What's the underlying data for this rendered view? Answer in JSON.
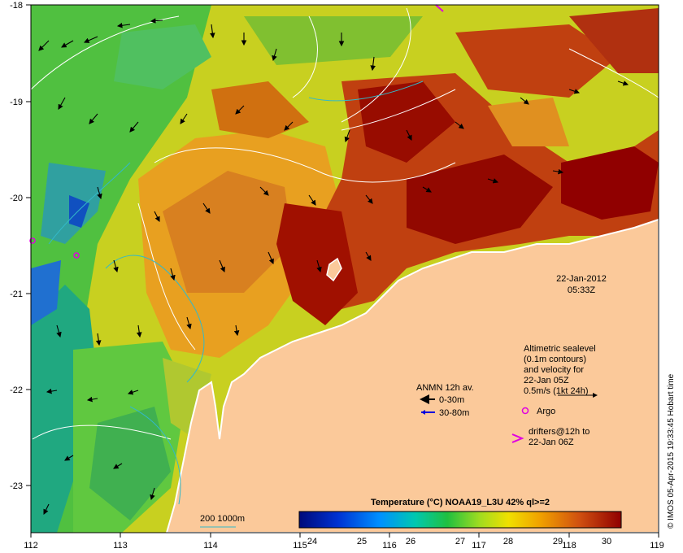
{
  "map": {
    "timestamp_date": "22-Jan-2012",
    "timestamp_time": "05:33Z",
    "lon_ticks": [
      "112",
      "113",
      "114",
      "115",
      "116",
      "117",
      "118",
      "119"
    ],
    "lat_ticks": [
      "-18",
      "-19",
      "-20",
      "-21",
      "-22",
      "-23"
    ],
    "colors": {
      "land": "#fbc99a",
      "coast": "#ffffff",
      "contour_sl": "#ffffff",
      "isobath": "#33b9c8",
      "arrow_shallow": "#000000",
      "arrow_deep": "#0000dd",
      "argo": "#e000e0"
    }
  },
  "legend": {
    "altimetric_line1": "Altimetric sealevel",
    "altimetric_line2": "(0.1m contours)",
    "altimetric_line3": "and velocity for",
    "altimetric_line4": "22-Jan 05Z",
    "altimetric_line5": "0.5m/s (1kt 24h)",
    "argo_label": "Argo",
    "drifters_line1": "drifters@12h to",
    "drifters_line2": "22-Jan 06Z",
    "anmn_title": "ANMN 12h av.",
    "anmn_shallow": "0-30m",
    "anmn_deep": "30-80m",
    "isobath_label": "200  1000m"
  },
  "colorbar": {
    "title": "Temperature (°C) NOAA19_L3U 42% ql>=2",
    "ticks": [
      "24",
      "25",
      "26",
      "27",
      "28",
      "29",
      "30"
    ],
    "colors": [
      "#000a7a",
      "#0032d2",
      "#0090ff",
      "#00c8b0",
      "#20c040",
      "#a0dc20",
      "#f0e000",
      "#f0a000",
      "#d05010",
      "#900000"
    ]
  },
  "credit": "© IMOS 05-Apr-2015 19:33:45 Hobart time"
}
